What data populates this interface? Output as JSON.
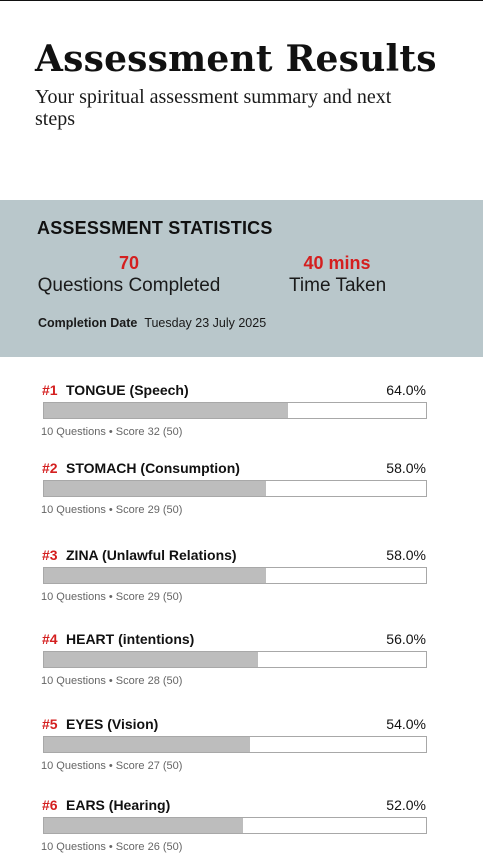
{
  "header": {
    "title": "Assessment Results",
    "subtitle": "Your spiritual assessment summary and next steps"
  },
  "stats": {
    "heading": "ASSESSMENT STATISTICS",
    "questions_value": "70",
    "questions_label": "Questions Completed",
    "time_value": "40 mins",
    "time_label": "Time Taken",
    "completion_label": "Completion Date",
    "completion_date": "Tuesday 23 July 2025"
  },
  "colors": {
    "accent": "#d41f1f",
    "stats_background": "#b9c7cb",
    "bar_fill": "#bdbdbd"
  },
  "results": [
    {
      "rank": "#1",
      "name": "TONGUE (Speech)",
      "percent_label": "64.0%",
      "fraction": 0.64,
      "meta": "10 Questions • Score 32 (50)"
    },
    {
      "rank": "#2",
      "name": "STOMACH (Consumption)",
      "percent_label": "58.0%",
      "fraction": 0.58,
      "meta": "10 Questions • Score 29 (50)"
    },
    {
      "rank": "#3",
      "name": "ZINA (Unlawful Relations)",
      "percent_label": "58.0%",
      "fraction": 0.58,
      "meta": "10 Questions • Score 29 (50)"
    },
    {
      "rank": "#4",
      "name": "HEART (intentions)",
      "percent_label": "56.0%",
      "fraction": 0.56,
      "meta": "10 Questions • Score 28 (50)"
    },
    {
      "rank": "#5",
      "name": "EYES (Vision)",
      "percent_label": "54.0%",
      "fraction": 0.54,
      "meta": "10 Questions • Score 27 (50)"
    },
    {
      "rank": "#6",
      "name": "EARS (Hearing)",
      "percent_label": "52.0%",
      "fraction": 0.52,
      "meta": "10 Questions • Score 26 (50)"
    }
  ]
}
